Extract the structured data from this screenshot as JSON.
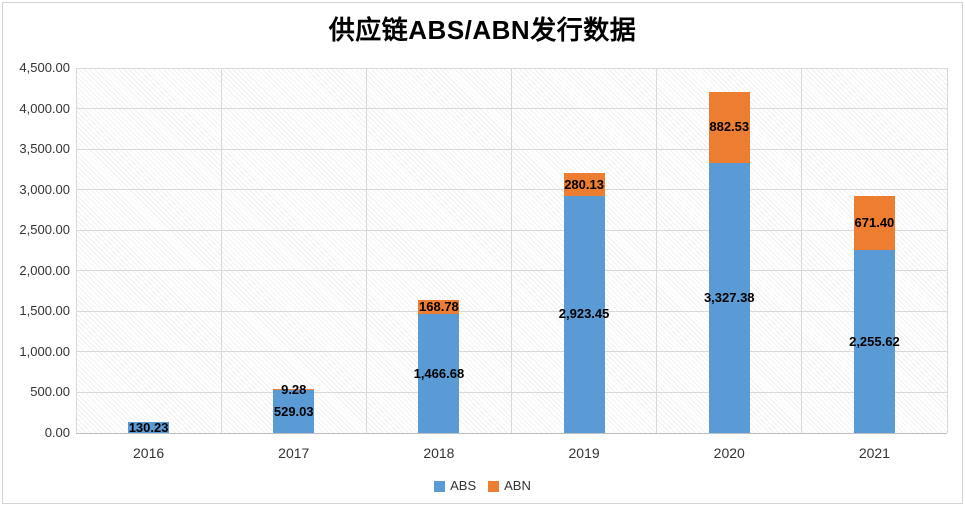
{
  "title": "供应链ABS/ABN发行数据",
  "chart_data": {
    "type": "bar",
    "stacked": true,
    "title": "供应链ABS/ABN发行数据",
    "categories": [
      "2016",
      "2017",
      "2018",
      "2019",
      "2020",
      "2021"
    ],
    "series": [
      {
        "name": "ABS",
        "color": "#5B9BD5",
        "values": [
          130.23,
          529.03,
          1466.68,
          2923.45,
          3327.38,
          2255.62
        ],
        "labels": [
          "130.23",
          "529.03",
          "1,466.68",
          "2,923.45",
          "3,327.38",
          "2,255.62"
        ]
      },
      {
        "name": "ABN",
        "color": "#ED7D31",
        "values": [
          0,
          9.28,
          168.78,
          280.13,
          882.53,
          671.4
        ],
        "labels": [
          "",
          "9.28",
          "168.78",
          "280.13",
          "882.53",
          "671.40"
        ]
      }
    ],
    "xlabel": "",
    "ylabel": "",
    "ylim": [
      0,
      4500
    ],
    "ytick_step": 500,
    "ytick_labels": [
      "0.00",
      "500.00",
      "1,000.00",
      "1,500.00",
      "2,000.00",
      "2,500.00",
      "3,000.00",
      "3,500.00",
      "4,000.00",
      "4,500.00"
    ],
    "grid": true,
    "legend_position": "bottom",
    "plot_background": "diagonal-hatch"
  },
  "colors": {
    "abs": "#5B9BD5",
    "abn": "#ED7D31",
    "gridline": "#d9d9d9",
    "axis_line": "#bfbfbf",
    "frame_border": "#d3d3d3",
    "axis_text": "#333333",
    "label_text": "#000000"
  }
}
